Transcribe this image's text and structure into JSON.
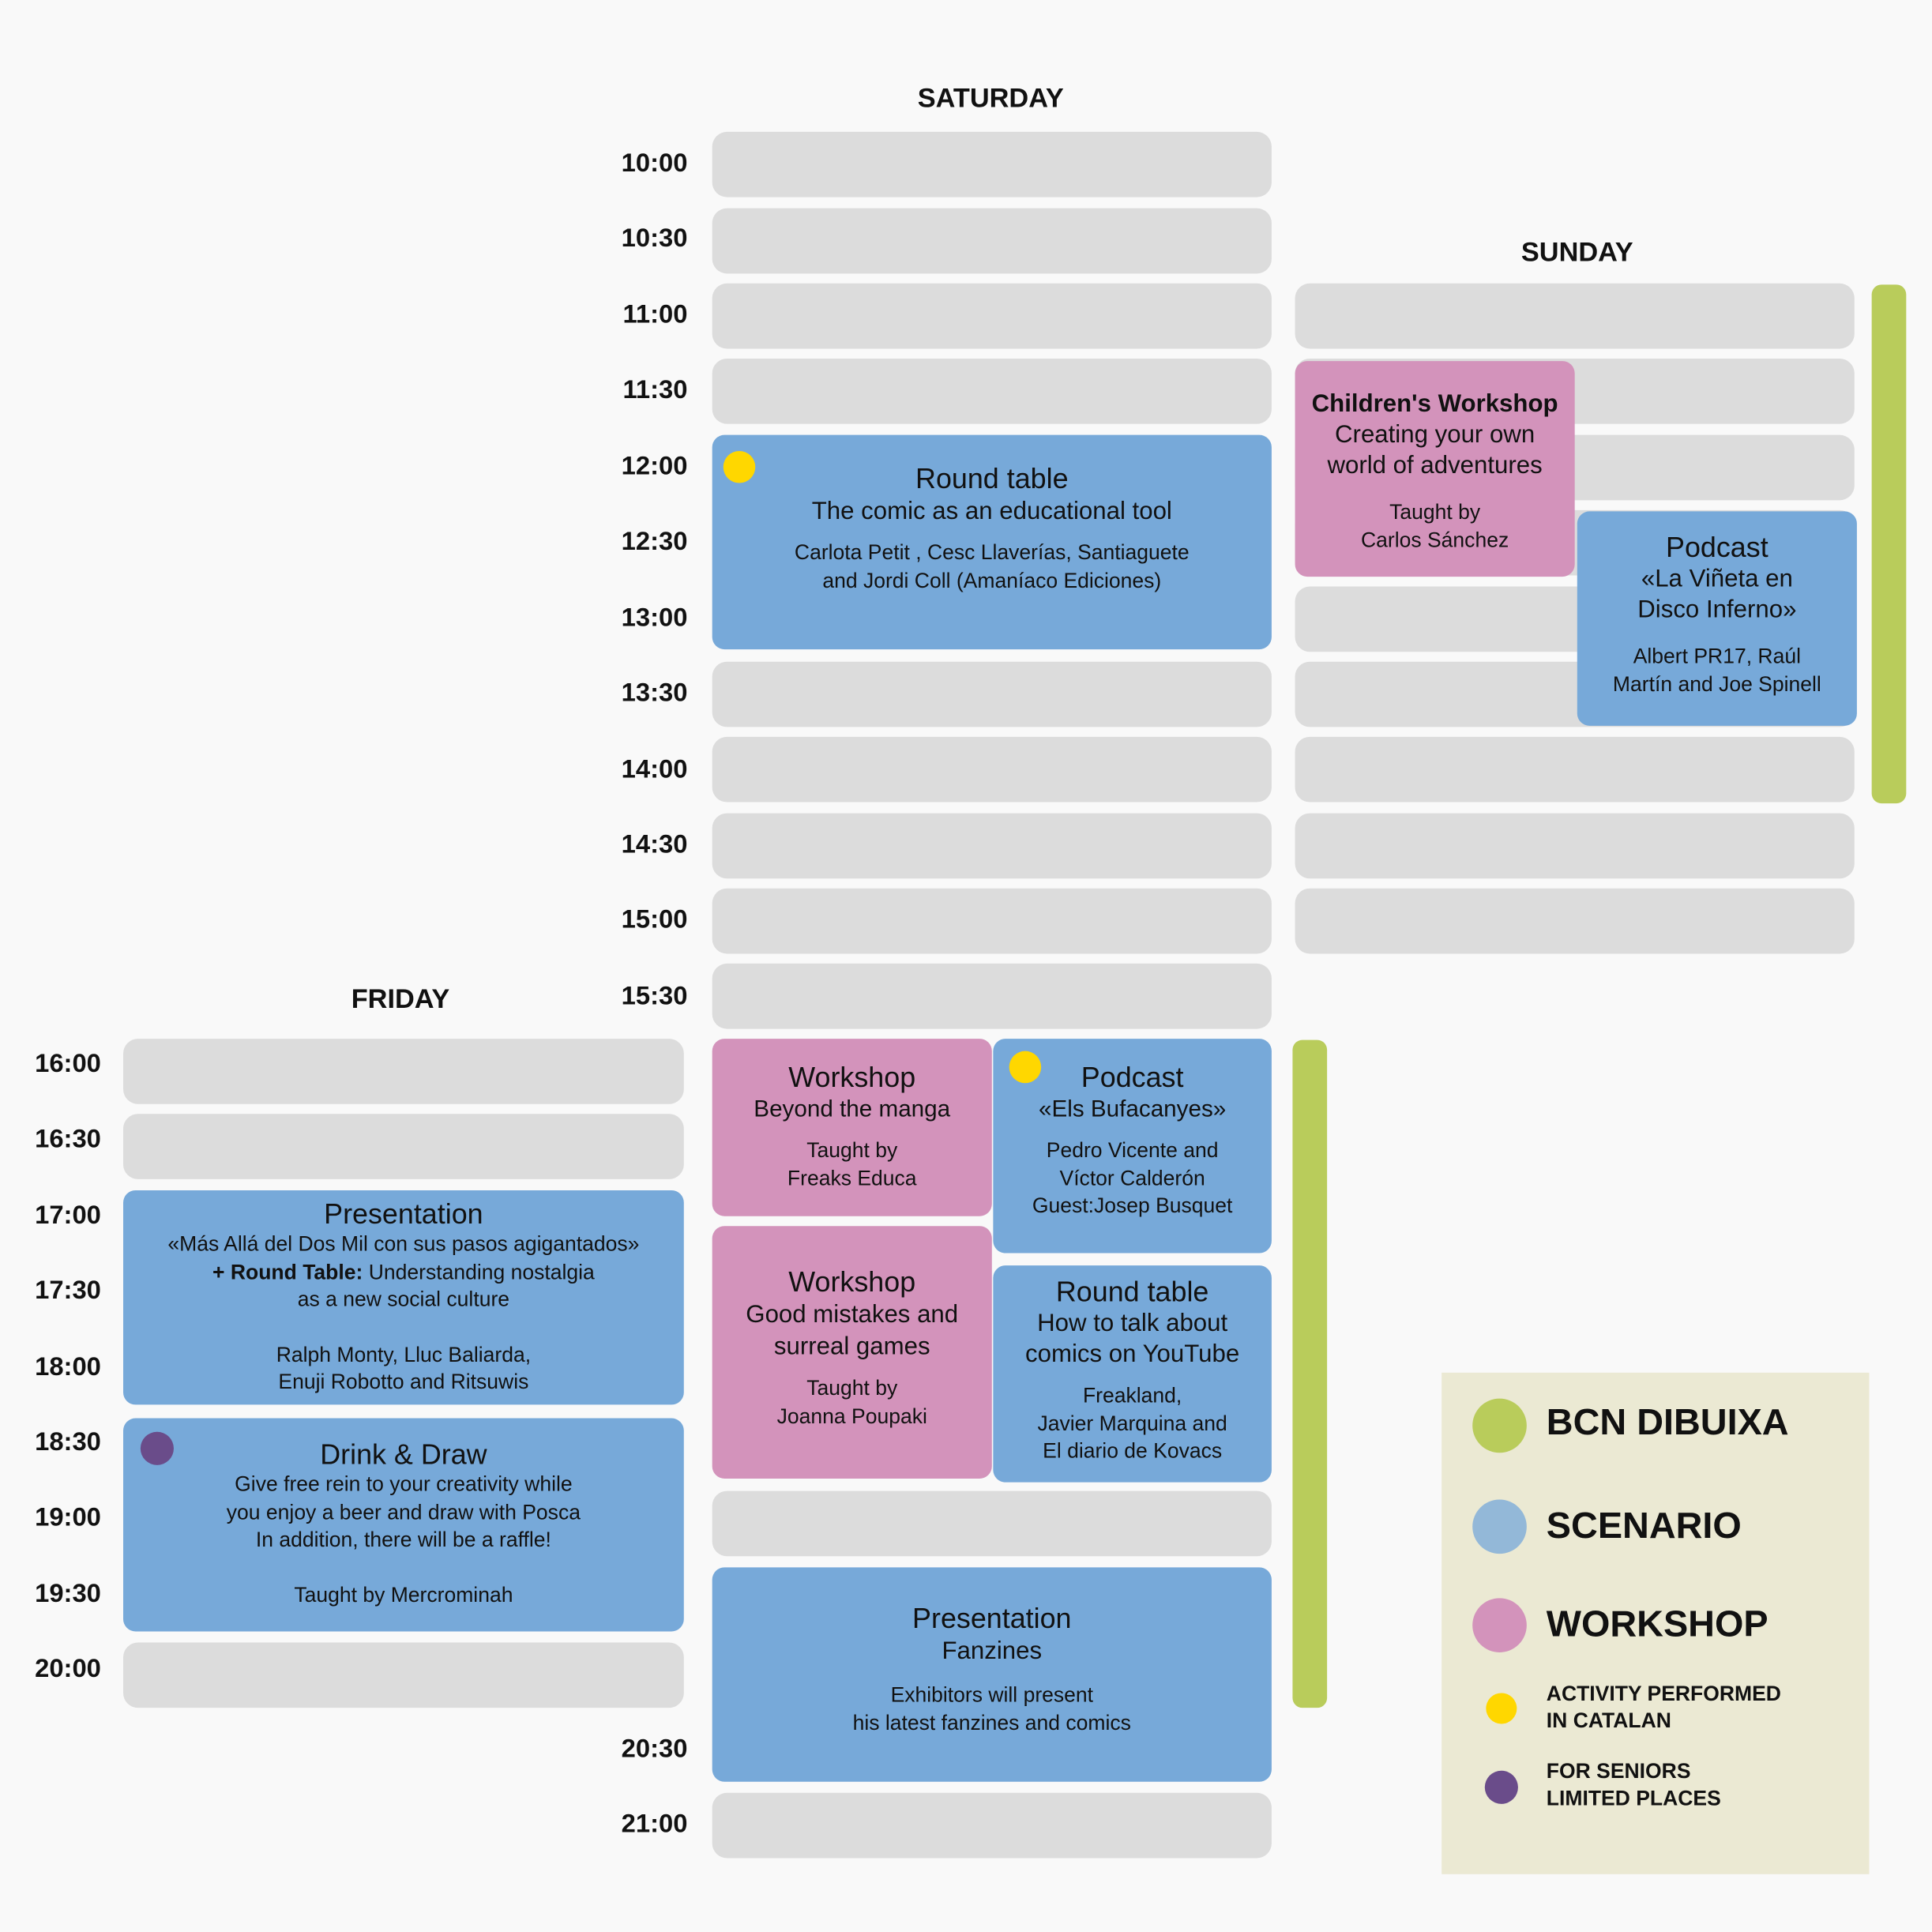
{
  "days": {
    "friday": "FRIDAY",
    "saturday": "SATURDAY",
    "sunday": "SUNDAY"
  },
  "times": {
    "saturday": [
      "10:00",
      "10:30",
      "11:00",
      "11:30",
      "12:00",
      "12:30",
      "13:00",
      "13:30",
      "14:00",
      "14:30",
      "15:00",
      "15:30",
      "20:30",
      "21:00"
    ],
    "friday": [
      "16:00",
      "16:30",
      "17:00",
      "17:30",
      "18:00",
      "18:30",
      "19:00",
      "19:30",
      "20:00"
    ]
  },
  "events": {
    "sat_round_table": {
      "title": "Round table",
      "subtitle": "The comic as an educational tool",
      "people1": "Carlota Petit , Cesc Llaverías, Santiaguete",
      "people2": "and Jordi Coll (Amaníaco Ediciones)"
    },
    "sat_workshop_manga": {
      "title": "Workshop",
      "subtitle": "Beyond the manga",
      "people1": "Taught by",
      "people2": "Freaks Educa"
    },
    "sat_podcast": {
      "title": "Podcast",
      "subtitle": "«Els Bufacanyes»",
      "people1": "Pedro Vicente and",
      "people2": "Víctor Calderón",
      "people3": "Guest:Josep Busquet"
    },
    "sat_workshop_mistakes": {
      "title": "Workshop",
      "subtitle1": "Good mistakes and",
      "subtitle2": "surreal games",
      "people1": "Taught by",
      "people2": "Joanna Poupaki"
    },
    "sat_round_table_youtube": {
      "title": "Round table",
      "subtitle1": "How to talk about",
      "subtitle2": "comics on YouTube",
      "people1": "Freakland,",
      "people2": "Javier Marquina and",
      "people3": "El diario de Kovacs"
    },
    "sat_presentation": {
      "title": "Presentation",
      "subtitle": "Fanzines",
      "people1": "Exhibitors will present",
      "people2": "his latest fanzines and comics"
    },
    "sun_children": {
      "title": "Children's Workshop",
      "subtitle1": "Creating your own",
      "subtitle2": "world of adventures",
      "people1": "Taught by",
      "people2": "Carlos Sánchez"
    },
    "sun_podcast": {
      "title": "Podcast",
      "subtitle1": "«La Viñeta en",
      "subtitle2": "Disco Inferno»",
      "people1": "Albert PR17, Raúl",
      "people2": "Martín and Joe Spinell"
    },
    "fri_presentation": {
      "title": "Presentation",
      "subtitle1": "«Más Allá del Dos Mil con sus pasos agigantados»",
      "bold": "+ Round Table:",
      "subtitle2": " Understanding nostalgia",
      "subtitle3": "as a new social culture",
      "people1": "Ralph Monty, Lluc Baliarda,",
      "people2": "Enuji Robotto and Ritsuwis"
    },
    "fri_drink_draw": {
      "title": "Drink & Draw",
      "line1": "Give free rein to your creativity while",
      "line2": "you enjoy a beer and draw with Posca",
      "line3": "In addition, there will be a raffle!",
      "people1": "Taught by Mercrominah"
    }
  },
  "legend": {
    "bcn": "BCN DIBUIXA",
    "scenario": "SCENARIO",
    "workshop": "WORKSHOP",
    "catalan1": "ACTIVITY PERFORMED",
    "catalan2": "IN CATALAN",
    "seniors1": "FOR SENIORS",
    "seniors2": "LIMITED PLACES"
  },
  "colors": {
    "bcn_dibuixa": "#b9cc5b",
    "scenario": "#77a9d9",
    "workshop": "#d393bb",
    "catalan": "#ffd700",
    "seniors": "#6a4c8a",
    "slot": "#dcdcdc"
  }
}
